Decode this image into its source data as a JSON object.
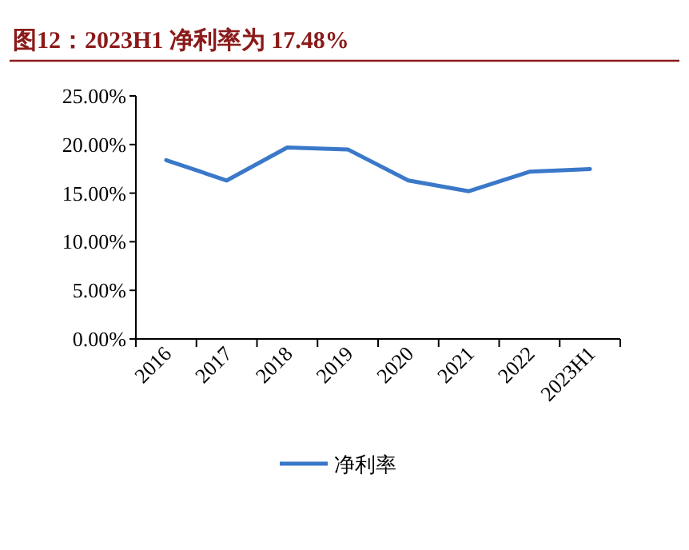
{
  "chart_data": {
    "type": "line",
    "title": "图12：2023H1 净利率为 17.48%",
    "categories": [
      "2016",
      "2017",
      "2018",
      "2019",
      "2020",
      "2021",
      "2022",
      "2023H1"
    ],
    "series": [
      {
        "name": "净利率",
        "color": "#3a78c9",
        "values": [
          18.4,
          16.3,
          19.7,
          19.5,
          16.3,
          15.2,
          17.2,
          17.48
        ]
      }
    ],
    "ylim": [
      0,
      25
    ],
    "yticks": [
      {
        "value": 0,
        "label": "0.00%"
      },
      {
        "value": 5,
        "label": "5.00%"
      },
      {
        "value": 10,
        "label": "10.00%"
      },
      {
        "value": 15,
        "label": "15.00%"
      },
      {
        "value": 20,
        "label": "20.00%"
      },
      {
        "value": 25,
        "label": "25.00%"
      }
    ],
    "legend": "bottom",
    "grid": false,
    "marker": "none",
    "line_style": "solid"
  }
}
